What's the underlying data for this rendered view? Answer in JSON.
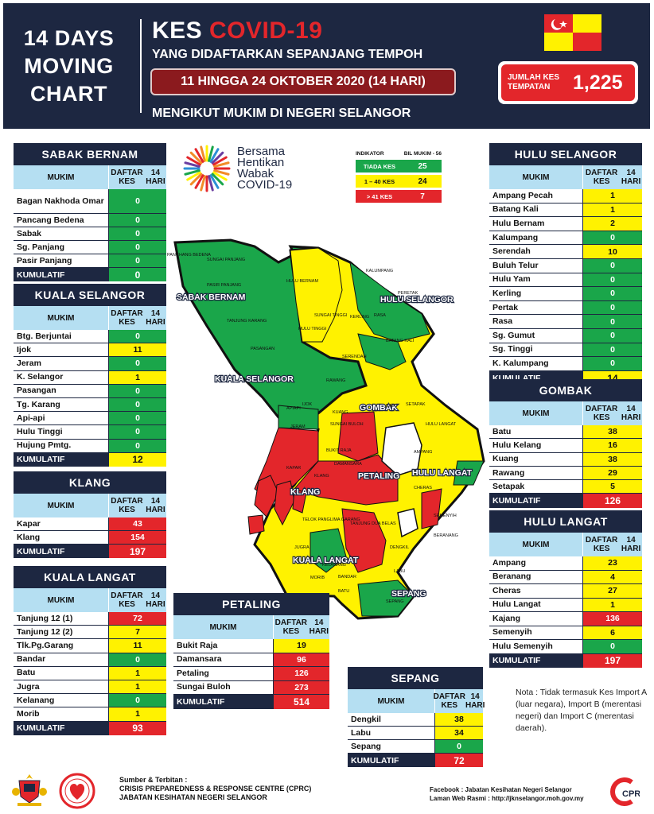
{
  "header": {
    "left_title_lines": [
      "14 DAYS",
      "MOVING",
      "CHART"
    ],
    "kes_prefix": "KES",
    "kes_highlight": "COVID-19",
    "registered_line": "YANG DIDAFTARKAN SEPANJANG TEMPOH",
    "date_range": "11 HINGGA 24 OKTOBER 2020 (14 HARI)",
    "subtitle": "MENGIKUT MUKIM DI NEGERI SELANGOR",
    "jumlah_label": "JUMLAH KES TEMPATAN",
    "jumlah_value": "1,225"
  },
  "logo": {
    "lines": [
      "Bersama",
      "Hentikan",
      "Wabak",
      "COVID-19"
    ]
  },
  "indikator": {
    "header_left": "INDIKATOR",
    "header_right": "BIL MUKIM - 56",
    "rows": [
      {
        "label": "TIADA KES",
        "value": "25",
        "color": "#1aa64a"
      },
      {
        "label": "1 – 40 KES",
        "value": "24",
        "color": "#fff200"
      },
      {
        "label": "> 41 KES",
        "value": "7",
        "color": "#e3262b"
      }
    ]
  },
  "colors": {
    "green": "#1aa64a",
    "yellow": "#fff200",
    "red": "#e3262b",
    "navy": "#1d2741",
    "header_blue": "#b5dff2"
  },
  "table_header": {
    "col1": "MUKIM",
    "col2_line1": "DAFTAR KES",
    "col2_line2": "14 HARI"
  },
  "kumulatif_label": "KUMULATIF",
  "districts": {
    "sabak_bernam": {
      "title": "SABAK BERNAM",
      "rows": [
        {
          "name": "Bagan Nakhoda Omar",
          "value": "0",
          "level": "g"
        },
        {
          "name": "Pancang Bedena",
          "value": "0",
          "level": "g"
        },
        {
          "name": "Sabak",
          "value": "0",
          "level": "g"
        },
        {
          "name": "Sg. Panjang",
          "value": "0",
          "level": "g"
        },
        {
          "name": "Pasir Panjang",
          "value": "0",
          "level": "g"
        }
      ],
      "kumulatif": "0",
      "kum_level": "g"
    },
    "kuala_selangor": {
      "title": "KUALA SELANGOR",
      "rows": [
        {
          "name": "Btg. Berjuntai",
          "value": "0",
          "level": "g"
        },
        {
          "name": "Ijok",
          "value": "11",
          "level": "y"
        },
        {
          "name": "Jeram",
          "value": "0",
          "level": "g"
        },
        {
          "name": "K. Selangor",
          "value": "1",
          "level": "y"
        },
        {
          "name": "Pasangan",
          "value": "0",
          "level": "g"
        },
        {
          "name": "Tg. Karang",
          "value": "0",
          "level": "g"
        },
        {
          "name": "Api-api",
          "value": "0",
          "level": "g"
        },
        {
          "name": "Hulu Tinggi",
          "value": "0",
          "level": "g"
        },
        {
          "name": "Hujung Pmtg.",
          "value": "0",
          "level": "g"
        }
      ],
      "kumulatif": "12",
      "kum_level": "y"
    },
    "klang": {
      "title": "KLANG",
      "rows": [
        {
          "name": "Kapar",
          "value": "43",
          "level": "r"
        },
        {
          "name": "Klang",
          "value": "154",
          "level": "r"
        }
      ],
      "kumulatif": "197",
      "kum_level": "r"
    },
    "kuala_langat": {
      "title": "KUALA LANGAT",
      "rows": [
        {
          "name": "Tanjung 12 (1)",
          "value": "72",
          "level": "r"
        },
        {
          "name": "Tanjung 12 (2)",
          "value": "7",
          "level": "y"
        },
        {
          "name": "Tlk.Pg.Garang",
          "value": "11",
          "level": "y"
        },
        {
          "name": "Bandar",
          "value": "0",
          "level": "g"
        },
        {
          "name": "Batu",
          "value": "1",
          "level": "y"
        },
        {
          "name": "Jugra",
          "value": "1",
          "level": "y"
        },
        {
          "name": "Kelanang",
          "value": "0",
          "level": "g"
        },
        {
          "name": "Morib",
          "value": "1",
          "level": "y"
        }
      ],
      "kumulatif": "93",
      "kum_level": "r"
    },
    "petaling": {
      "title": "PETALING",
      "rows": [
        {
          "name": "Bukit Raja",
          "value": "19",
          "level": "y"
        },
        {
          "name": "Damansara",
          "value": "96",
          "level": "r"
        },
        {
          "name": "Petaling",
          "value": "126",
          "level": "r"
        },
        {
          "name": "Sungai Buloh",
          "value": "273",
          "level": "r"
        }
      ],
      "kumulatif": "514",
      "kum_level": "r"
    },
    "sepang": {
      "title": "SEPANG",
      "rows": [
        {
          "name": "Dengkil",
          "value": "38",
          "level": "y"
        },
        {
          "name": "Labu",
          "value": "34",
          "level": "y"
        },
        {
          "name": "Sepang",
          "value": "0",
          "level": "g"
        }
      ],
      "kumulatif": "72",
      "kum_level": "r"
    },
    "hulu_selangor": {
      "title": "HULU SELANGOR",
      "rows": [
        {
          "name": "Ampang Pecah",
          "value": "1",
          "level": "y"
        },
        {
          "name": "Batang Kali",
          "value": "1",
          "level": "y"
        },
        {
          "name": "Hulu Bernam",
          "value": "2",
          "level": "y"
        },
        {
          "name": "Kalumpang",
          "value": "0",
          "level": "g"
        },
        {
          "name": "Serendah",
          "value": "10",
          "level": "y"
        },
        {
          "name": "Buluh Telur",
          "value": "0",
          "level": "g"
        },
        {
          "name": "Hulu Yam",
          "value": "0",
          "level": "g"
        },
        {
          "name": "Kerling",
          "value": "0",
          "level": "g"
        },
        {
          "name": "Pertak",
          "value": "0",
          "level": "g"
        },
        {
          "name": "Rasa",
          "value": "0",
          "level": "g"
        },
        {
          "name": "Sg. Gumut",
          "value": "0",
          "level": "g"
        },
        {
          "name": "Sg. Tinggi",
          "value": "0",
          "level": "g"
        },
        {
          "name": "K. Kalumpang",
          "value": "0",
          "level": "g"
        }
      ],
      "kumulatif": "14",
      "kum_level": "y"
    },
    "gombak": {
      "title": "GOMBAK",
      "rows": [
        {
          "name": "Batu",
          "value": "38",
          "level": "y"
        },
        {
          "name": "Hulu Kelang",
          "value": "16",
          "level": "y"
        },
        {
          "name": "Kuang",
          "value": "38",
          "level": "y"
        },
        {
          "name": "Rawang",
          "value": "29",
          "level": "y"
        },
        {
          "name": "Setapak",
          "value": "5",
          "level": "y"
        }
      ],
      "kumulatif": "126",
      "kum_level": "r"
    },
    "hulu_langat": {
      "title": "HULU LANGAT",
      "rows": [
        {
          "name": "Ampang",
          "value": "23",
          "level": "y"
        },
        {
          "name": "Beranang",
          "value": "4",
          "level": "y"
        },
        {
          "name": "Cheras",
          "value": "27",
          "level": "y"
        },
        {
          "name": "Hulu Langat",
          "value": "1",
          "level": "y"
        },
        {
          "name": "Kajang",
          "value": "136",
          "level": "r"
        },
        {
          "name": "Semenyih",
          "value": "6",
          "level": "y"
        },
        {
          "name": "Hulu Semenyih",
          "value": "0",
          "level": "g"
        }
      ],
      "kumulatif": "197",
      "kum_level": "r"
    }
  },
  "map": {
    "district_labels": [
      "SABAK BERNAM",
      "HULU SELANGOR",
      "KUALA SELANGOR",
      "GOMBAK",
      "PETALING",
      "HULU LANGAT",
      "KLANG",
      "KUALA LANGAT",
      "SEPANG"
    ],
    "mukim_labels": [
      "PANCHANG BEDENA",
      "SUNGAI PANJANG",
      "PASIR PANJANG",
      "HULU BERNAM",
      "KALUMPANG",
      "PERETAK",
      "RASA",
      "TANJUNG KARANG",
      "HULU TINGGI",
      "SUNGAI TINGGI",
      "KERLING",
      "BATANG KALI",
      "PASANGAN",
      "SERENDAH",
      "RAWANG",
      "KUANG",
      "BATU",
      "SETAPAK",
      "IJOK",
      "APIAPI",
      "JERAM",
      "SUNGAI BULOH",
      "BUKIT RAJA",
      "DAMANSARA",
      "HULU LANGAT",
      "AMPANG",
      "KAPAR",
      "KLANG",
      "CHERAS",
      "SEMENYIH",
      "TELOK PANGLIMA GARANG",
      "TANJUNG DUA BELAS",
      "DENGKIL",
      "BERANANG",
      "JUGRA",
      "MORIB",
      "KELANANG",
      "BANDAR",
      "BATU",
      "LABU",
      "SEPANG"
    ]
  },
  "nota": "Nota : Tidak termasuk Kes Import A (luar negara), Import B (merentasi negeri) dan Import C (merentasi daerah).",
  "footer": {
    "source_lines": [
      "Sumber & Terbitan :",
      "CRISIS PREPAREDNESS & RESPONSE CENTRE (CPRC)",
      "JABATAN KESIHATAN NEGERI SELANGOR"
    ],
    "social_lines": [
      "Facebook : Jabatan Kesihatan Negeri Selangor",
      "Laman Web Rasmi : http://jknselangor.moh.gov.my"
    ],
    "cprc_logo_text": "CPRC"
  }
}
